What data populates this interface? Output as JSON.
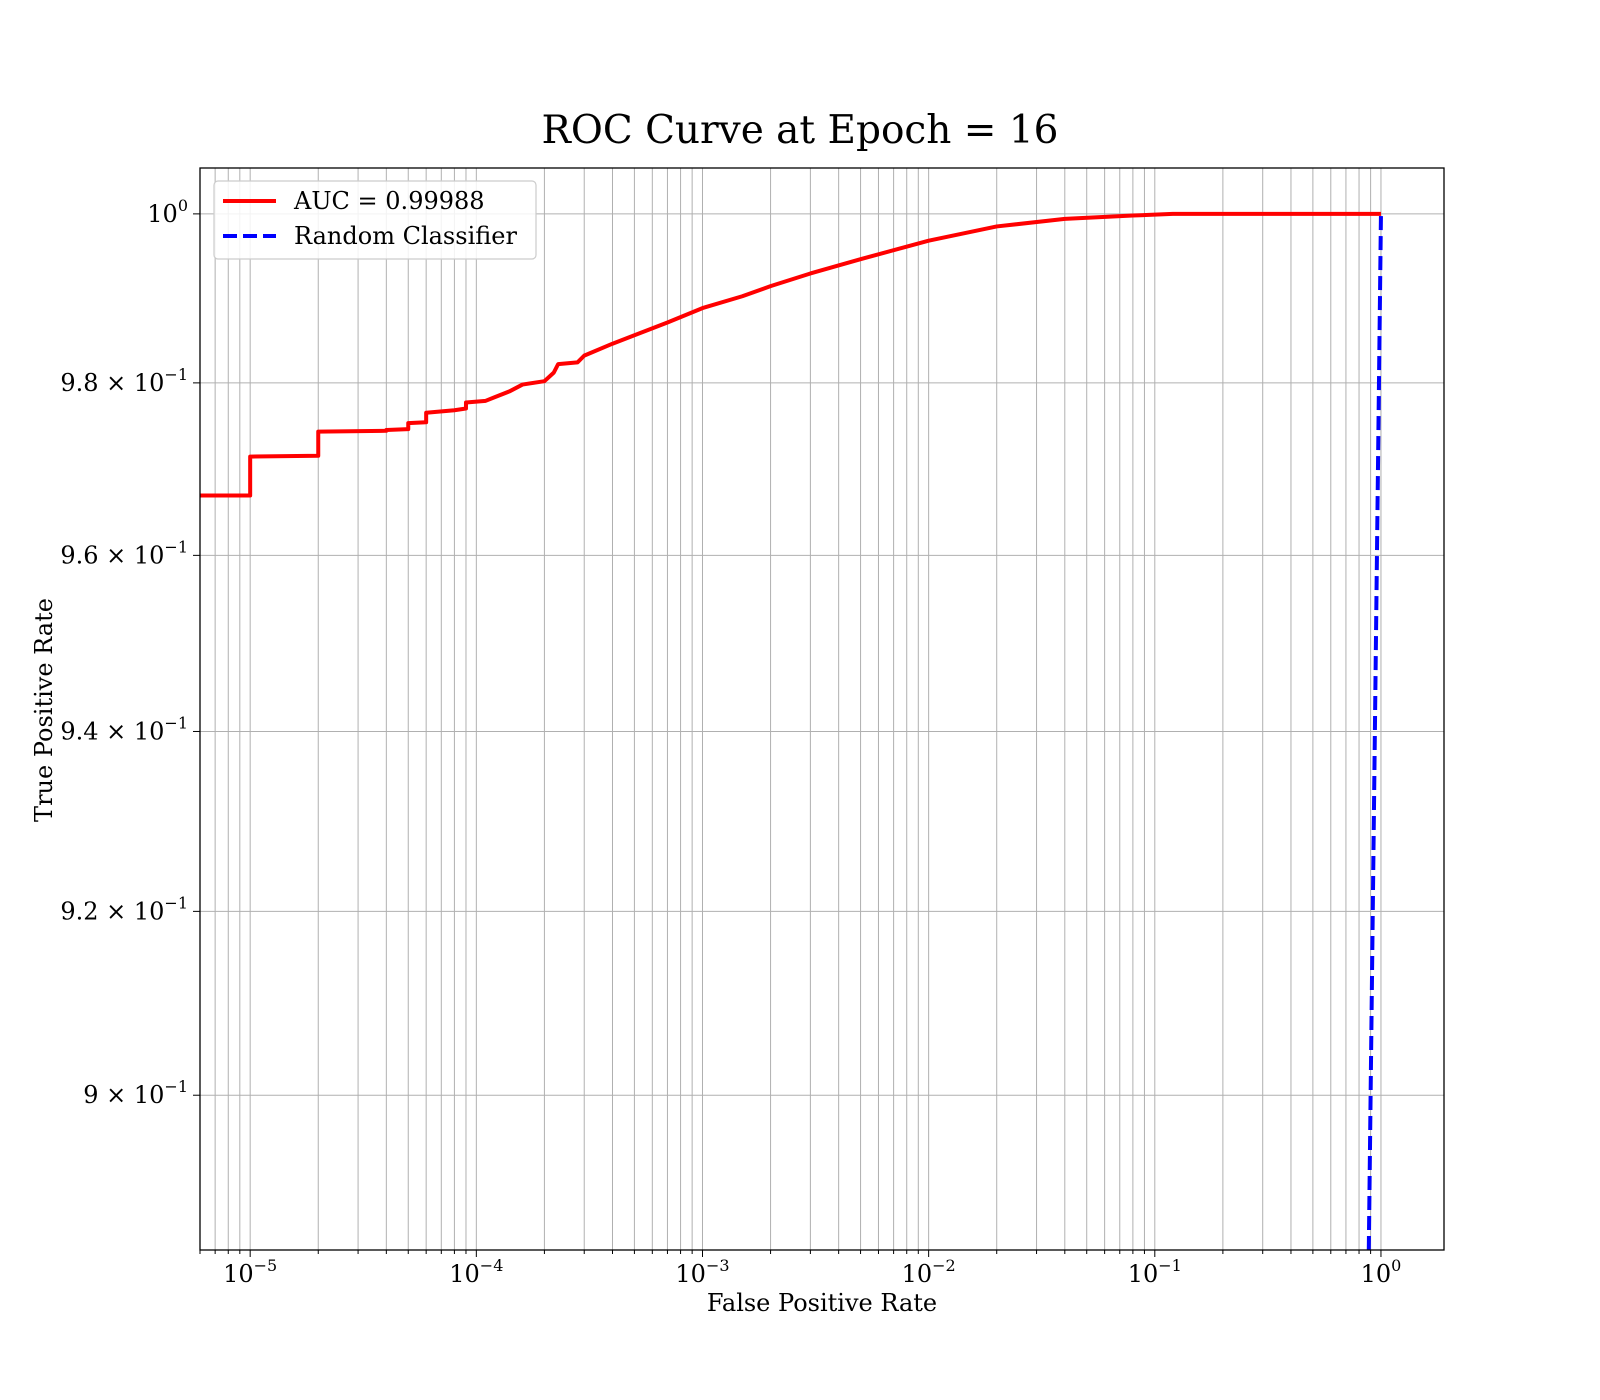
{
  "chart_data": {
    "type": "line",
    "title": "ROC Curve at Epoch = 16",
    "xlabel": "False Positive Rate",
    "ylabel": "True Positive Rate",
    "xscale": "log",
    "yscale": "log",
    "xlim": [
      6e-06,
      1.9
    ],
    "ylim": [
      0.8835,
      1.0055
    ],
    "grid": "major and minor",
    "legend_position": "top-left",
    "x_ticks": [
      {
        "value": 1e-05,
        "base": "10",
        "exp": "−5"
      },
      {
        "value": 0.0001,
        "base": "10",
        "exp": "−4"
      },
      {
        "value": 0.001,
        "base": "10",
        "exp": "−3"
      },
      {
        "value": 0.01,
        "base": "10",
        "exp": "−2"
      },
      {
        "value": 0.1,
        "base": "10",
        "exp": "−1"
      },
      {
        "value": 1,
        "base": "10",
        "exp": "0"
      }
    ],
    "y_ticks": [
      {
        "value": 1.0,
        "base": "10",
        "exp": "0"
      },
      {
        "value": 0.98,
        "base": "9.8 × 10",
        "exp": "−1"
      },
      {
        "value": 0.96,
        "base": "9.6 × 10",
        "exp": "−1"
      },
      {
        "value": 0.94,
        "base": "9.4 × 10",
        "exp": "−1"
      },
      {
        "value": 0.92,
        "base": "9.2 × 10",
        "exp": "−1"
      },
      {
        "value": 0.9,
        "base": "9 × 10",
        "exp": "−1"
      }
    ],
    "series": [
      {
        "name": "AUC = 0.99988",
        "color": "#ff0000",
        "style": "solid",
        "points": [
          [
            6e-06,
            0.9669
          ],
          [
            1e-05,
            0.9669
          ],
          [
            1e-05,
            0.9714
          ],
          [
            2e-05,
            0.9715
          ],
          [
            2e-05,
            0.9743
          ],
          [
            4e-05,
            0.9744
          ],
          [
            4e-05,
            0.9745
          ],
          [
            5e-05,
            0.9746
          ],
          [
            5e-05,
            0.9753
          ],
          [
            6e-05,
            0.9754
          ],
          [
            6e-05,
            0.9765
          ],
          [
            8e-05,
            0.9768
          ],
          [
            9e-05,
            0.977
          ],
          [
            9e-05,
            0.9777
          ],
          [
            0.00011,
            0.9779
          ],
          [
            0.00012,
            0.9783
          ],
          [
            0.00014,
            0.979
          ],
          [
            0.00016,
            0.9798
          ],
          [
            0.0002,
            0.9802
          ],
          [
            0.00022,
            0.9812
          ],
          [
            0.00023,
            0.9822
          ],
          [
            0.00028,
            0.9824
          ],
          [
            0.0003,
            0.9832
          ],
          [
            0.0004,
            0.9846
          ],
          [
            0.0005,
            0.9856
          ],
          [
            0.0007,
            0.9871
          ],
          [
            0.001,
            0.9888
          ],
          [
            0.0015,
            0.9902
          ],
          [
            0.002,
            0.9914
          ],
          [
            0.003,
            0.9929
          ],
          [
            0.005,
            0.9946
          ],
          [
            0.01,
            0.9968
          ],
          [
            0.02,
            0.9985
          ],
          [
            0.04,
            0.9994
          ],
          [
            0.08,
            0.9998
          ],
          [
            0.12,
            1.0
          ],
          [
            1.0,
            1.0
          ]
        ]
      },
      {
        "name": "Random Classifier",
        "color": "#0000ff",
        "style": "dashed",
        "points": [
          [
            0.8835,
            0.8835
          ],
          [
            0.93,
            0.93
          ],
          [
            0.96,
            0.96
          ],
          [
            0.98,
            0.98
          ],
          [
            1.0,
            1.0
          ]
        ]
      }
    ]
  }
}
